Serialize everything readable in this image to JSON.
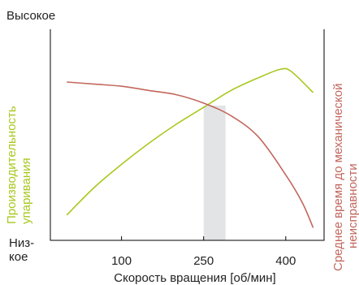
{
  "chart_data": {
    "type": "line",
    "title": "",
    "y_top_label": "Высокое",
    "y_bottom_label": [
      "Низ-",
      "кое"
    ],
    "xlabel": "Скорость вращения [об/мин]",
    "ylabel_left": [
      "Производительность",
      "упаривания"
    ],
    "ylabel_right": [
      "Среднее время до механической",
      "неисправности"
    ],
    "x_ticks": [
      {
        "label": "100",
        "value": 100
      },
      {
        "label": "250",
        "value": 250
      },
      {
        "label": "400",
        "value": 400
      }
    ],
    "highlight_band": {
      "from": 250,
      "to": 290,
      "color": "#e3e4e6"
    },
    "series": [
      {
        "key": "evaporation",
        "color": "#a8c81e",
        "x": [
          0,
          50,
          100,
          150,
          200,
          250,
          300,
          350,
          390,
          410,
          450
        ],
        "y": [
          0.12,
          0.25,
          0.36,
          0.46,
          0.55,
          0.63,
          0.71,
          0.77,
          0.81,
          0.8,
          0.7
        ]
      },
      {
        "key": "mtbf",
        "color": "#c2675d",
        "x": [
          0,
          50,
          100,
          150,
          200,
          250,
          300,
          350,
          400,
          430,
          450
        ],
        "y": [
          0.75,
          0.74,
          0.73,
          0.71,
          0.69,
          0.65,
          0.59,
          0.49,
          0.31,
          0.18,
          0.06
        ]
      }
    ],
    "xlim": [
      -30,
      470
    ],
    "ylim": [
      0,
      1
    ]
  }
}
